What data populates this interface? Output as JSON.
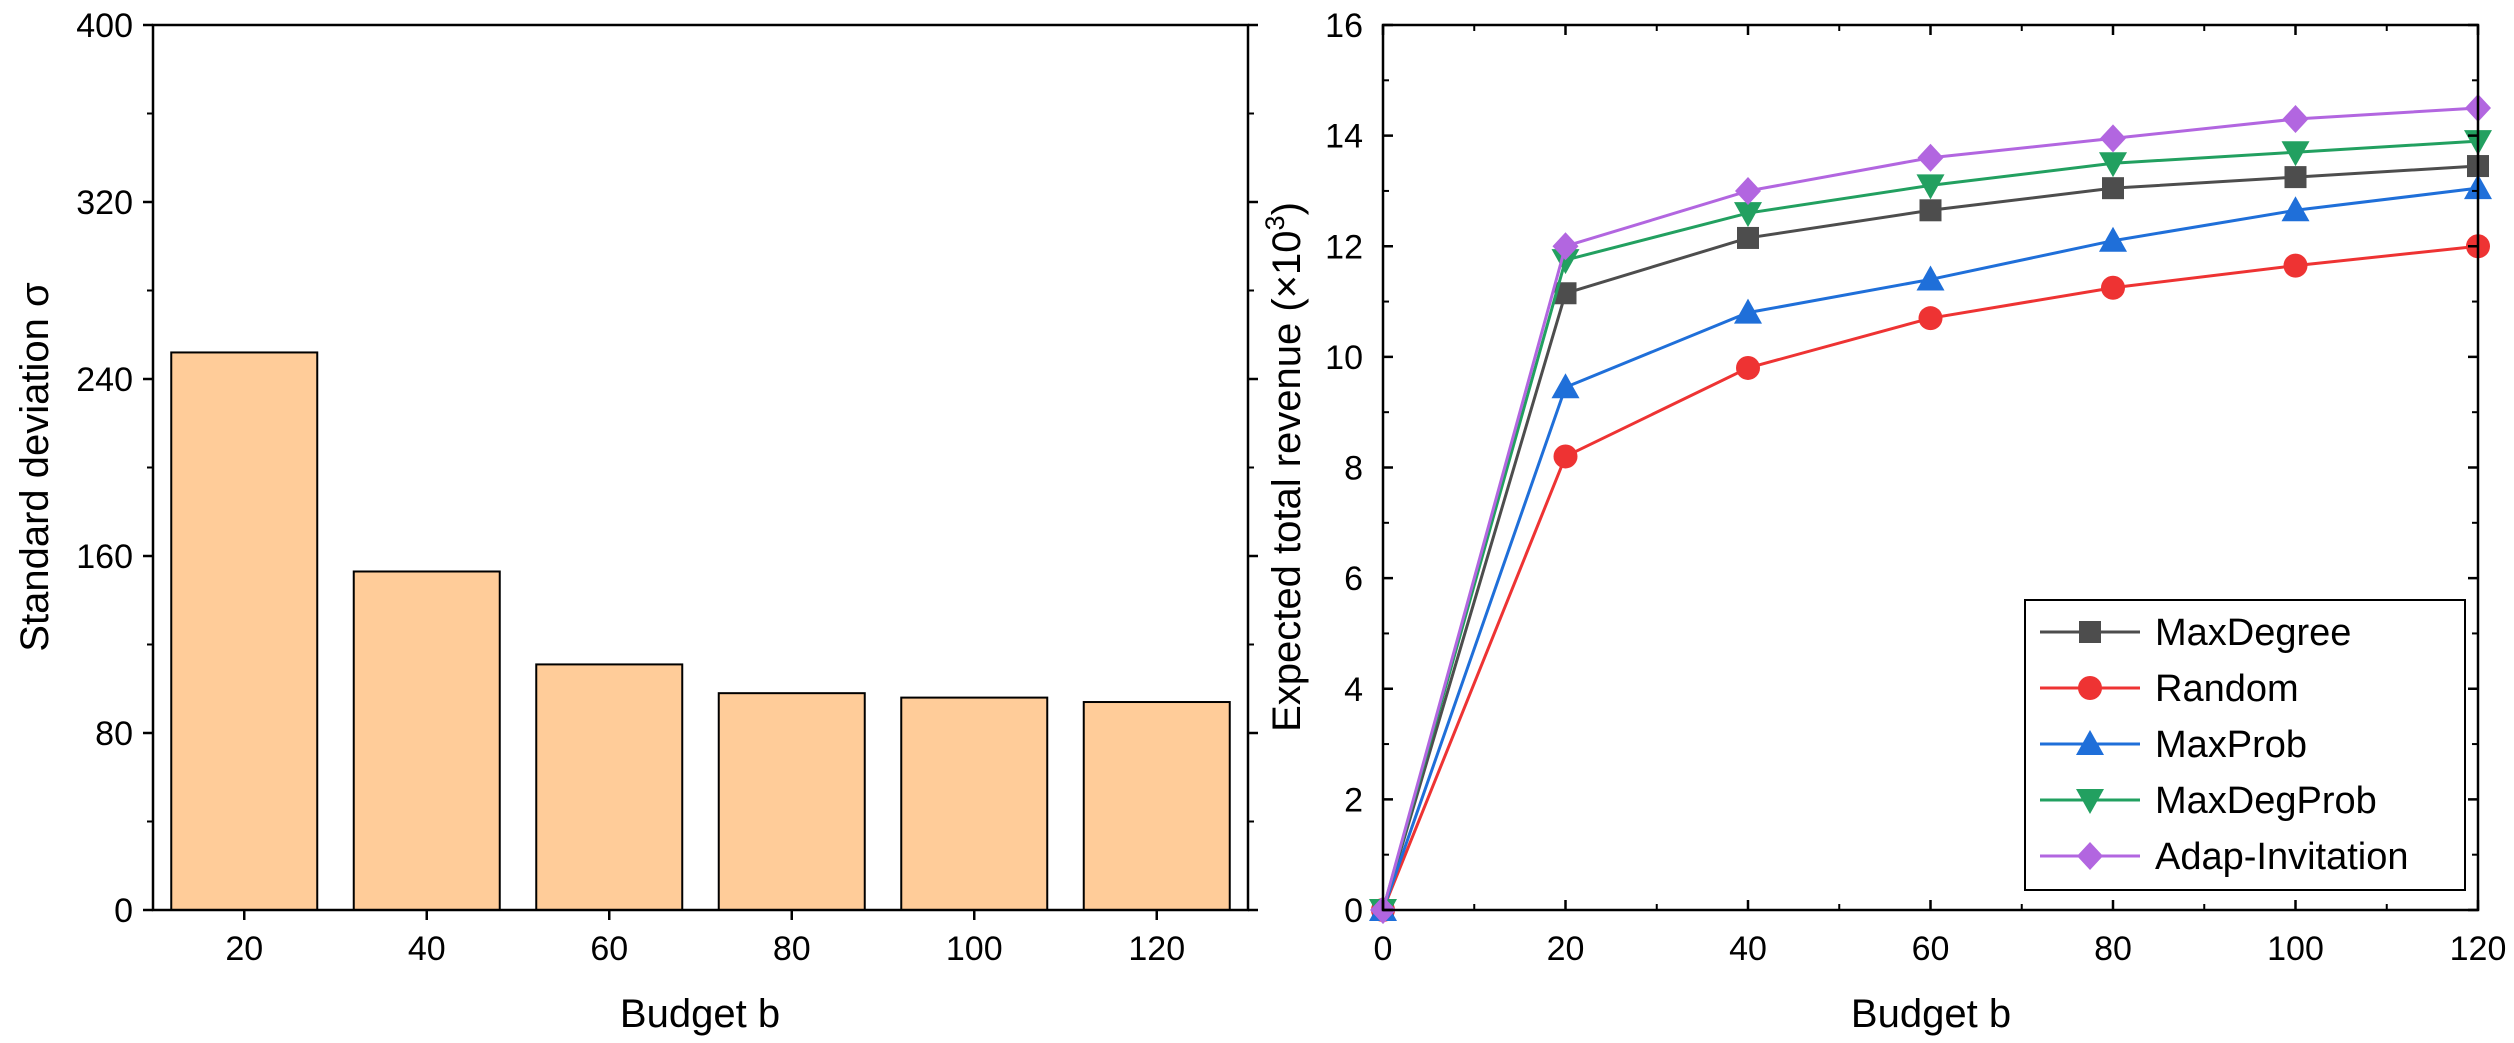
{
  "chart_data": [
    {
      "type": "bar",
      "title": "",
      "xlabel": "Budget b",
      "ylabel": "Standard deviation σ",
      "categories": [
        "20",
        "40",
        "60",
        "80",
        "100",
        "120"
      ],
      "values": [
        252,
        153,
        111,
        98,
        96,
        94
      ],
      "ylim": [
        0,
        400
      ],
      "yticks": [
        0,
        80,
        160,
        240,
        320,
        400
      ],
      "bar_color": "#FFCC99",
      "grid": false
    },
    {
      "type": "line",
      "title": "",
      "xlabel": "Budget b",
      "ylabel": "Expected total revenue (×10",
      "ylabel_sup": "3",
      "ylabel_close": ")",
      "x": [
        0,
        20,
        40,
        60,
        80,
        100,
        120
      ],
      "xlim": [
        0,
        120
      ],
      "xticks": [
        0,
        20,
        40,
        60,
        80,
        100,
        120
      ],
      "ylim": [
        0,
        16
      ],
      "yticks": [
        0,
        2,
        4,
        6,
        8,
        10,
        12,
        14,
        16
      ],
      "legend_position": "bottom-right",
      "grid": false,
      "series": [
        {
          "name": "MaxDegree",
          "marker": "square",
          "color": "#4D4D4D",
          "values": [
            0,
            11.15,
            12.15,
            12.65,
            13.05,
            13.25,
            13.45
          ]
        },
        {
          "name": "Random",
          "marker": "circle",
          "color": "#EE3333",
          "values": [
            0,
            8.2,
            9.8,
            10.7,
            11.25,
            11.65,
            12.0
          ]
        },
        {
          "name": "MaxProb",
          "marker": "triangle-up",
          "color": "#1F6FD9",
          "values": [
            0,
            9.45,
            10.8,
            11.4,
            12.1,
            12.65,
            13.05
          ]
        },
        {
          "name": "MaxDegProb",
          "marker": "triangle-down",
          "color": "#22A060",
          "values": [
            0,
            11.75,
            12.6,
            13.1,
            13.5,
            13.7,
            13.9
          ]
        },
        {
          "name": "Adap-Invitation",
          "marker": "diamond",
          "color": "#B266E0",
          "values": [
            0,
            12.0,
            13.0,
            13.6,
            13.95,
            14.3,
            14.5
          ]
        }
      ]
    }
  ]
}
